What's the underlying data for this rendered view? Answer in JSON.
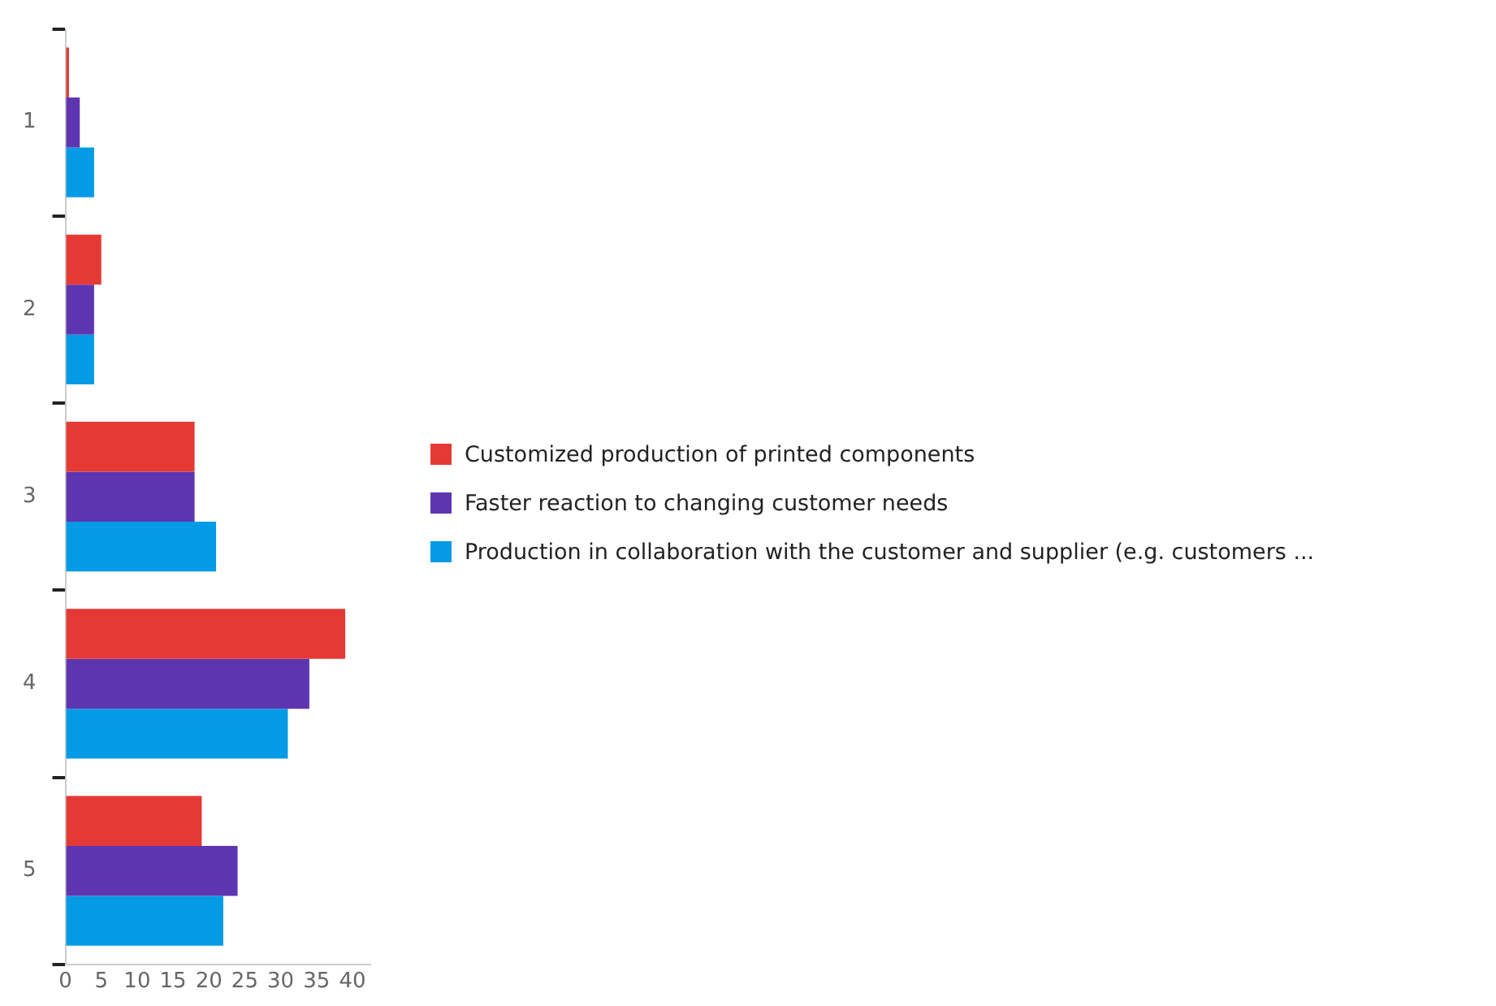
{
  "chart_data": {
    "type": "bar",
    "orientation": "horizontal",
    "categories": [
      "1",
      "2",
      "3",
      "4",
      "5"
    ],
    "series": [
      {
        "name": "Customized production of printed components",
        "color": "#e53935",
        "values": [
          0.5,
          5,
          18,
          39,
          19
        ]
      },
      {
        "name": "Faster reaction to changing customer needs",
        "color": "#5e35b1",
        "values": [
          2,
          4,
          18,
          34,
          24
        ]
      },
      {
        "name": "Production in collaboration with the customer and supplier (e.g. customers ...",
        "color": "#039be5",
        "values": [
          4,
          4,
          21,
          31,
          22
        ]
      }
    ],
    "xlim": [
      0,
      42.5
    ],
    "xticks": [
      0,
      5,
      10,
      15,
      20,
      25,
      30,
      35,
      40
    ],
    "grid": false,
    "legend": "right"
  }
}
